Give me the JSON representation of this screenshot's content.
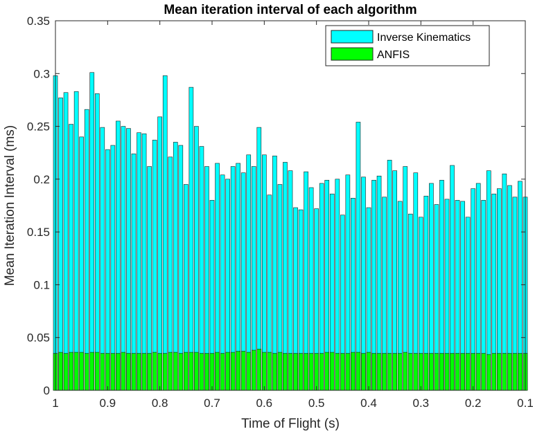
{
  "chart_data": {
    "type": "bar",
    "layout": "overlay",
    "title": "Mean iteration interval of each algorithm",
    "xlabel": "Time of Flight (s)",
    "ylabel": "Mean Iteration Interval (ms)",
    "xlim": [
      1,
      0.1
    ],
    "ylim": [
      0,
      0.35
    ],
    "x_reversed": true,
    "xticks": [
      1,
      0.9,
      0.8,
      0.7,
      0.6,
      0.5,
      0.4,
      0.3,
      0.2,
      0.1
    ],
    "xtick_labels": [
      "1",
      "0.9",
      "0.8",
      "0.7",
      "0.6",
      "0.5",
      "0.4",
      "0.3",
      "0.2",
      "0.1"
    ],
    "yticks": [
      0,
      0.05,
      0.1,
      0.15,
      0.2,
      0.25,
      0.3,
      0.35
    ],
    "ytick_labels": [
      "0",
      "0.05",
      "0.1",
      "0.15",
      "0.2",
      "0.25",
      "0.3",
      "0.35"
    ],
    "grid": false,
    "legend_position": "top-right",
    "x": [
      1.0,
      0.99,
      0.98,
      0.97,
      0.96,
      0.95,
      0.94,
      0.93,
      0.92,
      0.91,
      0.9,
      0.89,
      0.88,
      0.87,
      0.86,
      0.85,
      0.84,
      0.83,
      0.82,
      0.81,
      0.8,
      0.79,
      0.78,
      0.77,
      0.76,
      0.75,
      0.74,
      0.73,
      0.72,
      0.71,
      0.7,
      0.69,
      0.68,
      0.67,
      0.66,
      0.65,
      0.64,
      0.63,
      0.62,
      0.61,
      0.6,
      0.59,
      0.58,
      0.57,
      0.56,
      0.55,
      0.54,
      0.53,
      0.52,
      0.51,
      0.5,
      0.49,
      0.48,
      0.47,
      0.46,
      0.45,
      0.44,
      0.43,
      0.42,
      0.41,
      0.4,
      0.39,
      0.38,
      0.37,
      0.36,
      0.35,
      0.34,
      0.33,
      0.32,
      0.31,
      0.3,
      0.29,
      0.28,
      0.27,
      0.26,
      0.25,
      0.24,
      0.23,
      0.22,
      0.21,
      0.2,
      0.19,
      0.18,
      0.17,
      0.16,
      0.15,
      0.14,
      0.13,
      0.12,
      0.11,
      0.1
    ],
    "series": [
      {
        "name": "Inverse Kinematics",
        "color": "#00ffff",
        "values": [
          0.298,
          0.277,
          0.282,
          0.252,
          0.283,
          0.24,
          0.266,
          0.301,
          0.281,
          0.249,
          0.228,
          0.232,
          0.255,
          0.25,
          0.248,
          0.224,
          0.244,
          0.243,
          0.212,
          0.237,
          0.259,
          0.298,
          0.221,
          0.235,
          0.232,
          0.195,
          0.287,
          0.25,
          0.231,
          0.212,
          0.18,
          0.215,
          0.204,
          0.2,
          0.212,
          0.215,
          0.206,
          0.223,
          0.212,
          0.249,
          0.223,
          0.185,
          0.222,
          0.195,
          0.216,
          0.208,
          0.173,
          0.171,
          0.207,
          0.192,
          0.172,
          0.196,
          0.199,
          0.186,
          0.2,
          0.166,
          0.204,
          0.182,
          0.254,
          0.202,
          0.173,
          0.199,
          0.203,
          0.183,
          0.218,
          0.208,
          0.179,
          0.212,
          0.167,
          0.206,
          0.164,
          0.184,
          0.196,
          0.176,
          0.199,
          0.181,
          0.213,
          0.18,
          0.179,
          0.164,
          0.191,
          0.196,
          0.18,
          0.208,
          0.186,
          0.191,
          0.205,
          0.194,
          0.183,
          0.198,
          0.183
        ]
      },
      {
        "name": "ANFIS",
        "color": "#00ff00",
        "values": [
          0.035,
          0.036,
          0.035,
          0.036,
          0.036,
          0.036,
          0.035,
          0.036,
          0.036,
          0.035,
          0.035,
          0.035,
          0.035,
          0.036,
          0.035,
          0.035,
          0.035,
          0.035,
          0.035,
          0.036,
          0.035,
          0.035,
          0.036,
          0.036,
          0.035,
          0.036,
          0.036,
          0.036,
          0.035,
          0.035,
          0.035,
          0.036,
          0.035,
          0.036,
          0.036,
          0.037,
          0.037,
          0.036,
          0.038,
          0.039,
          0.036,
          0.036,
          0.035,
          0.036,
          0.035,
          0.035,
          0.035,
          0.035,
          0.035,
          0.035,
          0.035,
          0.035,
          0.036,
          0.036,
          0.035,
          0.035,
          0.035,
          0.036,
          0.036,
          0.035,
          0.036,
          0.035,
          0.035,
          0.035,
          0.035,
          0.035,
          0.035,
          0.036,
          0.035,
          0.035,
          0.035,
          0.035,
          0.035,
          0.035,
          0.035,
          0.035,
          0.035,
          0.035,
          0.035,
          0.035,
          0.035,
          0.035,
          0.035,
          0.034,
          0.035,
          0.035,
          0.035,
          0.035,
          0.035,
          0.035,
          0.035
        ]
      }
    ]
  }
}
